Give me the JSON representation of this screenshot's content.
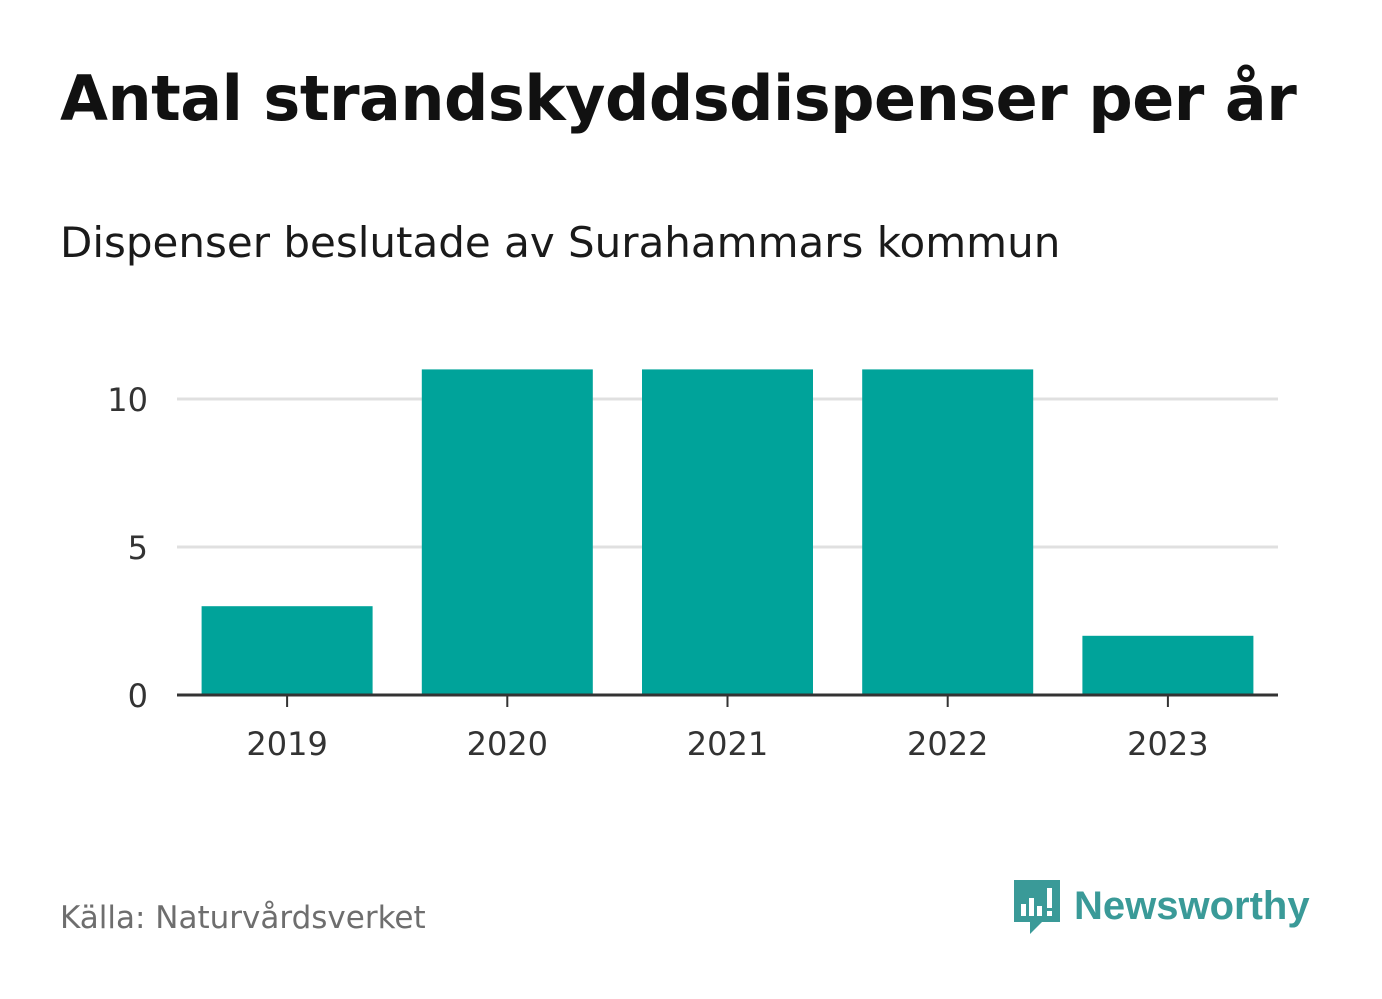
{
  "title": "Antal strandskyddsdispenser per år",
  "subtitle": "Dispenser beslutade av Surahammars kommun",
  "source": "Källa: Naturvårdsverket",
  "brand": {
    "name": "Newsworthy",
    "icon": "newsworthy-logo-icon",
    "color": "#3a9a98"
  },
  "colors": {
    "bar": "#00a39a",
    "grid": "#e0e0e0",
    "axis": "#333333"
  },
  "chart_data": {
    "type": "bar",
    "title": "Antal strandskyddsdispenser per år",
    "subtitle": "Dispenser beslutade av Surahammars kommun",
    "xlabel": "",
    "ylabel": "",
    "categories": [
      "2019",
      "2020",
      "2021",
      "2022",
      "2023"
    ],
    "values": [
      3,
      11,
      11,
      11,
      2
    ],
    "yticks": [
      0,
      5,
      10
    ],
    "ylim": [
      0,
      11
    ],
    "grid": true,
    "legend": "none"
  }
}
